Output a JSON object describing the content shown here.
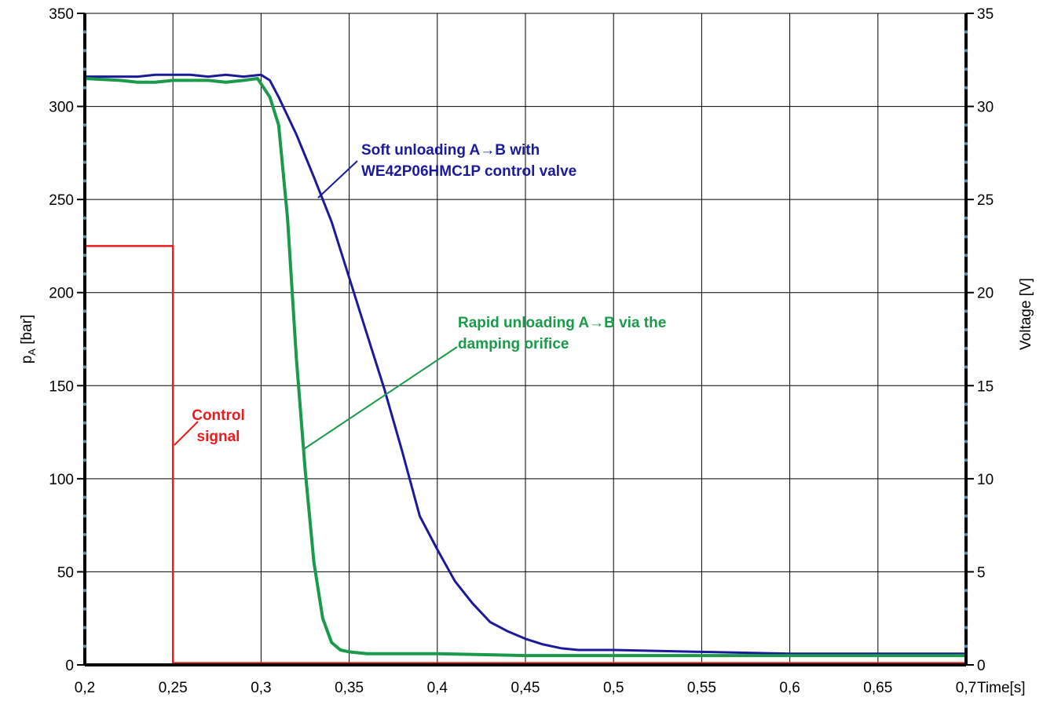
{
  "chart_data": {
    "type": "line",
    "title": "",
    "xlabel": "Time[s]",
    "ylabel_left": "pA [bar]",
    "ylabel_left_main": "p",
    "ylabel_left_sub": "A",
    "ylabel_left_unit": " [bar]",
    "ylabel_right": "Voltage [V]",
    "xlim": [
      0.2,
      0.7
    ],
    "ylim_left": [
      0,
      350
    ],
    "ylim_right": [
      0,
      35
    ],
    "grid": true,
    "x_ticks": [
      0.2,
      0.25,
      0.3,
      0.35,
      0.4,
      0.45,
      0.5,
      0.55,
      0.6,
      0.65,
      0.7
    ],
    "x_tick_labels": [
      "0,2",
      "0,25",
      "0,3",
      "0,35",
      "0,4",
      "0,45",
      "0,5",
      "0,55",
      "0,6",
      "0,65",
      "0,7"
    ],
    "y_left_ticks": [
      0,
      50,
      100,
      150,
      200,
      250,
      300,
      350
    ],
    "y_left_tick_labels": [
      "0",
      "50",
      "100",
      "150",
      "200",
      "250",
      "300",
      "350"
    ],
    "y_right_ticks": [
      0,
      5,
      10,
      15,
      20,
      25,
      30,
      35
    ],
    "y_right_tick_labels": [
      "0",
      "5",
      "10",
      "15",
      "20",
      "25",
      "30",
      "35"
    ],
    "series": [
      {
        "axis": "left",
        "color": "#1a1a9a",
        "x": [
          0.2,
          0.22,
          0.23,
          0.24,
          0.25,
          0.26,
          0.27,
          0.28,
          0.29,
          0.3,
          0.305,
          0.31,
          0.32,
          0.33,
          0.34,
          0.35,
          0.36,
          0.37,
          0.38,
          0.39,
          0.4,
          0.41,
          0.42,
          0.43,
          0.44,
          0.45,
          0.46,
          0.47,
          0.48,
          0.5,
          0.55,
          0.6,
          0.65,
          0.7
        ],
        "y": [
          316,
          316,
          316,
          317,
          317,
          317,
          316,
          317,
          316,
          317,
          314,
          305,
          285,
          262,
          238,
          208,
          178,
          148,
          115,
          80,
          62,
          45,
          33,
          23,
          18,
          14,
          11,
          9,
          8,
          8,
          7,
          6,
          6,
          6
        ]
      },
      {
        "axis": "left",
        "color": "#1a9a4a",
        "x": [
          0.2,
          0.22,
          0.23,
          0.24,
          0.25,
          0.26,
          0.27,
          0.28,
          0.29,
          0.298,
          0.305,
          0.31,
          0.315,
          0.32,
          0.325,
          0.33,
          0.335,
          0.34,
          0.345,
          0.35,
          0.36,
          0.4,
          0.45,
          0.5,
          0.55,
          0.6,
          0.65,
          0.7
        ],
        "y": [
          315,
          314,
          313,
          313,
          314,
          314,
          314,
          313,
          314,
          315,
          305,
          290,
          240,
          165,
          105,
          55,
          25,
          12,
          8,
          7,
          6,
          6,
          5,
          5,
          5,
          5,
          5,
          5
        ]
      },
      {
        "axis": "right",
        "color": "#e81c1c",
        "x": [
          0.2,
          0.25,
          0.25,
          0.7
        ],
        "y": [
          22.5,
          22.5,
          0.1,
          0.1
        ]
      }
    ],
    "annotations": [
      {
        "lines": [
          "Soft unloading A→B with",
          "WE42P06HMC1P control valve"
        ],
        "color": "#1a1a9a"
      },
      {
        "lines": [
          "Rapid unloading A→B via the",
          "damping orifice"
        ],
        "color": "#1a9a4a"
      },
      {
        "lines": [
          "Control",
          "signal"
        ],
        "color": "#e81c1c"
      }
    ]
  }
}
